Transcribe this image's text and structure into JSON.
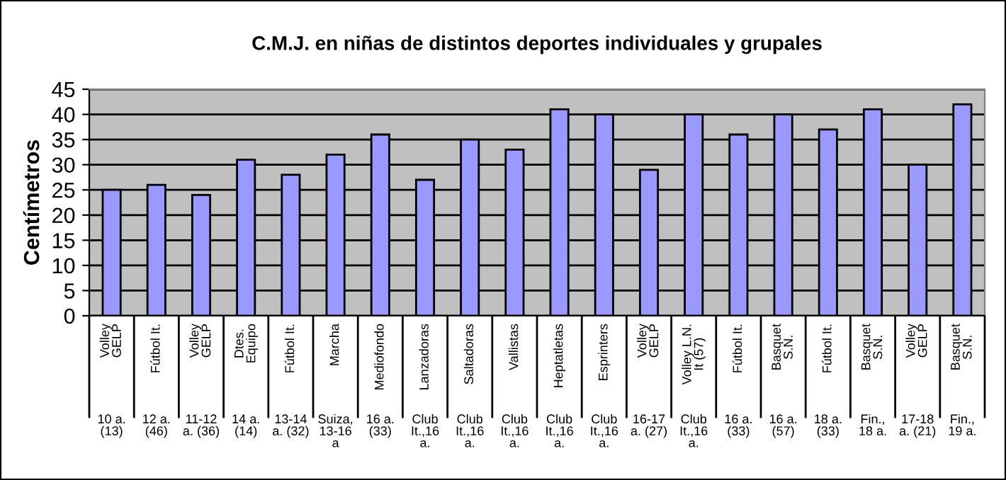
{
  "chart_data": {
    "type": "bar",
    "title": "C.M.J. en niñas de distintos deportes individuales y grupales",
    "ylabel": "Centímetros",
    "categories": [
      "Volley\nGELP\n\n10 a.\n(13)",
      "Fútbol It.\n\n12 a.\n(46)",
      "Volley\nGELP\n\n11-12\na. (36)",
      "Dtes.\nEquipo\n\n14 a.\n(14)",
      "Fútbol It.\n\n13-14\na. (32)",
      "Marcha\n\nSuiza,\n13-16\na",
      "Mediofondo\n\n16 a.\n(33)",
      "Lanzadoras\n\nClub\nIt.,16\na.",
      "Saltadoras\n\nClub\nIt.,16\na.",
      "Vallistas\n\nClub\nIt.,16\na.",
      "Heptatletas\n\nClub\nIt.,16\na.",
      "Esprinters\n\nClub\nIt.,16\na.",
      "Volley\nGELP\n\n16-17\na. (27)",
      "Volley L.N.\nIt (57)\n\nClub\nIt.,16\na.",
      "Fútbol It.\n\n16 a.\n(33)",
      "Basquet\nS.N.\n\n16 a.\n(57)",
      "Fútbol It.\n\n18 a.\n(33)",
      "Basquet\nS.N.\n\nFin.,\n18 a.",
      "Volley\nGELP\n\n17-18\na. (21)",
      "Basquet\nS.N.\n\nFin.,\n19 a."
    ],
    "values": [
      25,
      26,
      24,
      31,
      28,
      32,
      36,
      27,
      35,
      33,
      41,
      40,
      29,
      40,
      36,
      40,
      37,
      41,
      30,
      42
    ],
    "color": "#9999ff",
    "ylim": [
      0,
      45
    ],
    "yticks": [
      0,
      5,
      10,
      15,
      20,
      25,
      30,
      35,
      40,
      45
    ],
    "grid": "y"
  }
}
